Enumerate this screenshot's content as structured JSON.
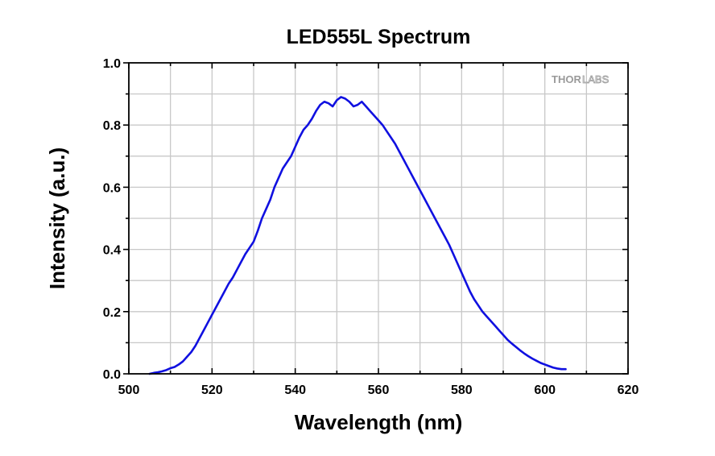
{
  "chart_data": {
    "type": "line",
    "title": "LED555L Spectrum",
    "xlabel": "Wavelength (nm)",
    "ylabel": "Intensity (a.u.)",
    "xlim": [
      500,
      620
    ],
    "ylim": [
      0.0,
      1.0
    ],
    "xticks": [
      500,
      520,
      540,
      560,
      580,
      600,
      620
    ],
    "xtick_labels": [
      "500",
      "520",
      "540",
      "560",
      "580",
      "600",
      "620"
    ],
    "yticks": [
      0.0,
      0.2,
      0.4,
      0.6,
      0.8,
      1.0
    ],
    "ytick_labels": [
      "0.0",
      "0.2",
      "0.4",
      "0.6",
      "0.8",
      "1.0"
    ],
    "grid": true,
    "watermark": {
      "thor": "THOR",
      "labs": "LABS"
    },
    "series": [
      {
        "color": "#1010e0",
        "x": [
          505,
          506,
          507,
          508,
          509,
          510,
          511,
          512,
          513,
          514,
          515,
          516,
          517,
          518,
          519,
          520,
          521,
          522,
          523,
          524,
          525,
          526,
          527,
          528,
          529,
          530,
          531,
          532,
          533,
          534,
          535,
          536,
          537,
          538,
          539,
          540,
          541,
          542,
          543,
          544,
          545,
          546,
          547,
          548,
          549,
          550,
          551,
          552,
          553,
          554,
          555,
          556,
          557,
          558,
          559,
          560,
          561,
          562,
          563,
          564,
          565,
          566,
          567,
          568,
          569,
          570,
          571,
          572,
          573,
          574,
          575,
          576,
          577,
          578,
          579,
          580,
          581,
          582,
          583,
          584,
          585,
          586,
          587,
          588,
          589,
          590,
          591,
          592,
          593,
          594,
          595,
          596,
          597,
          598,
          599,
          600,
          601,
          602,
          603,
          604,
          605
        ],
        "y": [
          0.0,
          0.003,
          0.005,
          0.008,
          0.012,
          0.018,
          0.022,
          0.03,
          0.04,
          0.055,
          0.07,
          0.09,
          0.115,
          0.14,
          0.165,
          0.19,
          0.215,
          0.24,
          0.265,
          0.29,
          0.31,
          0.335,
          0.36,
          0.385,
          0.405,
          0.425,
          0.46,
          0.5,
          0.53,
          0.56,
          0.6,
          0.63,
          0.66,
          0.68,
          0.7,
          0.73,
          0.76,
          0.785,
          0.8,
          0.82,
          0.845,
          0.865,
          0.875,
          0.87,
          0.86,
          0.88,
          0.89,
          0.885,
          0.875,
          0.86,
          0.865,
          0.875,
          0.86,
          0.845,
          0.83,
          0.815,
          0.8,
          0.78,
          0.76,
          0.74,
          0.715,
          0.69,
          0.665,
          0.64,
          0.615,
          0.59,
          0.565,
          0.54,
          0.515,
          0.49,
          0.465,
          0.44,
          0.415,
          0.385,
          0.355,
          0.325,
          0.295,
          0.265,
          0.24,
          0.22,
          0.2,
          0.185,
          0.17,
          0.155,
          0.14,
          0.125,
          0.11,
          0.098,
          0.087,
          0.076,
          0.066,
          0.057,
          0.049,
          0.042,
          0.035,
          0.03,
          0.025,
          0.02,
          0.017,
          0.015,
          0.015
        ]
      }
    ]
  }
}
